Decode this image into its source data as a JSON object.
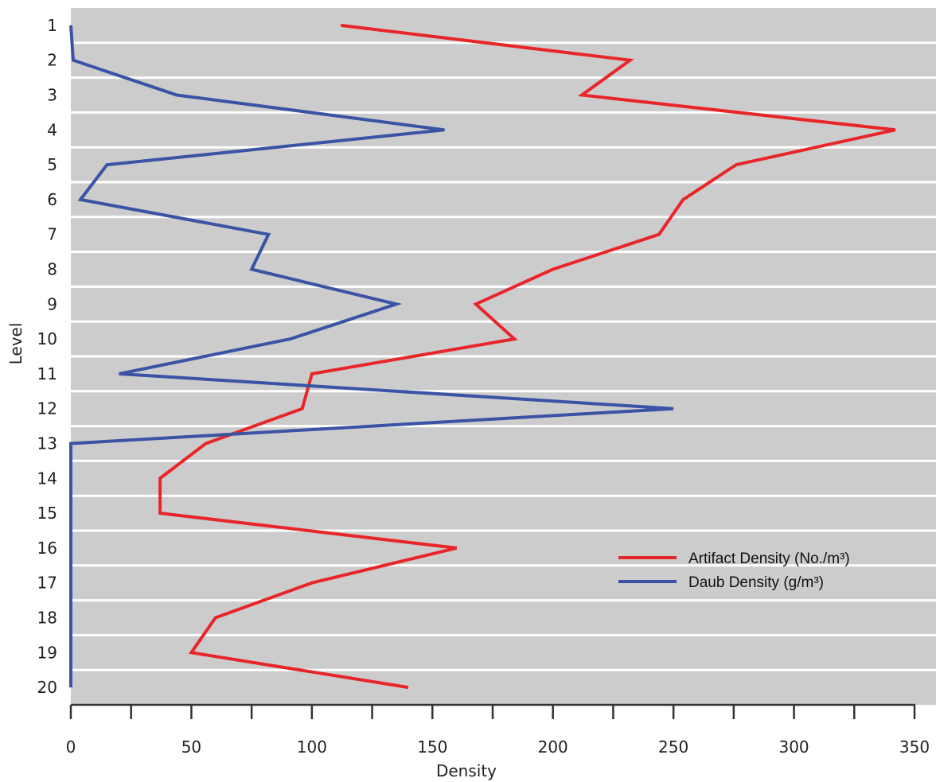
{
  "chart_data": {
    "type": "line",
    "orientation": "vertical-profile",
    "xlabel": "Density",
    "ylabel": "Level",
    "xlim": [
      0,
      350
    ],
    "x_ticks": [
      0,
      50,
      100,
      150,
      200,
      250,
      300,
      350
    ],
    "x_tick_labels": [
      "0",
      "50",
      "100",
      "150",
      "200",
      "250",
      "300",
      "350"
    ],
    "levels": [
      1,
      2,
      3,
      4,
      5,
      6,
      7,
      8,
      9,
      10,
      11,
      12,
      13,
      14,
      15,
      16,
      17,
      18,
      19,
      20
    ],
    "level_labels": [
      "1",
      "2",
      "3",
      "4",
      "5",
      "6",
      "7",
      "8",
      "9",
      "10",
      "11",
      "12",
      "13",
      "14",
      "15",
      "16",
      "17",
      "18",
      "19",
      "20"
    ],
    "series": [
      {
        "name": "Artifact Density (No./m³)",
        "color": "#e8262a",
        "values": [
          112,
          232,
          212,
          342,
          276,
          254,
          244,
          200,
          168,
          184,
          100,
          96,
          56,
          37,
          37,
          160,
          100,
          60,
          50,
          140
        ]
      },
      {
        "name": "Daub Density (g/m³)",
        "color": "#3a53a4",
        "values": [
          0,
          1,
          44,
          155,
          15,
          4,
          82,
          75,
          135,
          91,
          20,
          250,
          0,
          0,
          0,
          0,
          0,
          0,
          0,
          0
        ]
      }
    ],
    "grid": true,
    "background": "#cccccc",
    "gridline_color": "#ffffff",
    "legend_position": "lower-right"
  }
}
